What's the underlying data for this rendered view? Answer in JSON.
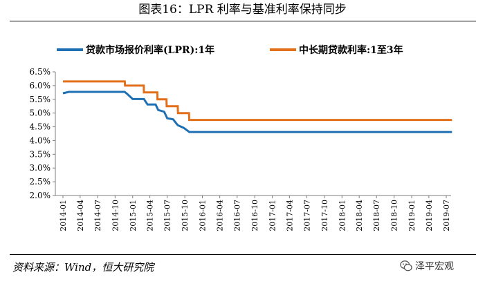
{
  "title": "图表16：LPR 利率与基准利率保持同步",
  "source": "资料来源：Wind，恒大研究院",
  "watermark": "泽平宏观",
  "colors": {
    "lpr": "#1f6fb3",
    "base": "#e26f1a",
    "axis": "#7f7f7f"
  },
  "chart_data": {
    "type": "line",
    "legend_position": "top",
    "grid": false,
    "ylim": [
      2.0,
      6.5
    ],
    "y_ticks": [
      "6.5%",
      "6.0%",
      "5.5%",
      "5.0%",
      "4.5%",
      "4.0%",
      "3.5%",
      "3.0%",
      "2.5%",
      "2.0%"
    ],
    "x_ticks": [
      "2014-01",
      "2014-04",
      "2014-07",
      "2014-10",
      "2015-01",
      "2015-04",
      "2015-07",
      "2015-10",
      "2016-01",
      "2016-04",
      "2016-07",
      "2016-10",
      "2017-01",
      "2017-04",
      "2017-07",
      "2017-10",
      "2018-01",
      "2018-04",
      "2018-07",
      "2018-10",
      "2019-01",
      "2019-04",
      "2019-07"
    ],
    "series": [
      {
        "name": "贷款市场报价利率(LPR):1年",
        "color": "#1f6fb3",
        "points": [
          [
            "2014-01-01",
            5.72
          ],
          [
            "2014-02-01",
            5.77
          ],
          [
            "2014-11-20",
            5.77
          ],
          [
            "2014-12-01",
            5.71
          ],
          [
            "2015-01-01",
            5.51
          ],
          [
            "2015-03-01",
            5.51
          ],
          [
            "2015-03-20",
            5.31
          ],
          [
            "2015-05-01",
            5.31
          ],
          [
            "2015-05-15",
            5.11
          ],
          [
            "2015-06-15",
            5.05
          ],
          [
            "2015-07-01",
            4.81
          ],
          [
            "2015-08-01",
            4.77
          ],
          [
            "2015-08-25",
            4.56
          ],
          [
            "2015-09-25",
            4.46
          ],
          [
            "2015-10-25",
            4.31
          ],
          [
            "2019-07-31",
            4.31
          ]
        ]
      },
      {
        "name": "中长期贷款利率:1至3年",
        "color": "#e26f1a",
        "points": [
          [
            "2014-01-01",
            6.15
          ],
          [
            "2014-11-21",
            6.15
          ],
          [
            "2014-11-22",
            6.0
          ],
          [
            "2015-02-28",
            6.0
          ],
          [
            "2015-03-01",
            5.75
          ],
          [
            "2015-05-10",
            5.75
          ],
          [
            "2015-05-11",
            5.5
          ],
          [
            "2015-06-27",
            5.5
          ],
          [
            "2015-06-28",
            5.25
          ],
          [
            "2015-08-25",
            5.25
          ],
          [
            "2015-08-26",
            5.0
          ],
          [
            "2015-10-23",
            5.0
          ],
          [
            "2015-10-24",
            4.75
          ],
          [
            "2019-07-31",
            4.75
          ]
        ]
      }
    ]
  }
}
